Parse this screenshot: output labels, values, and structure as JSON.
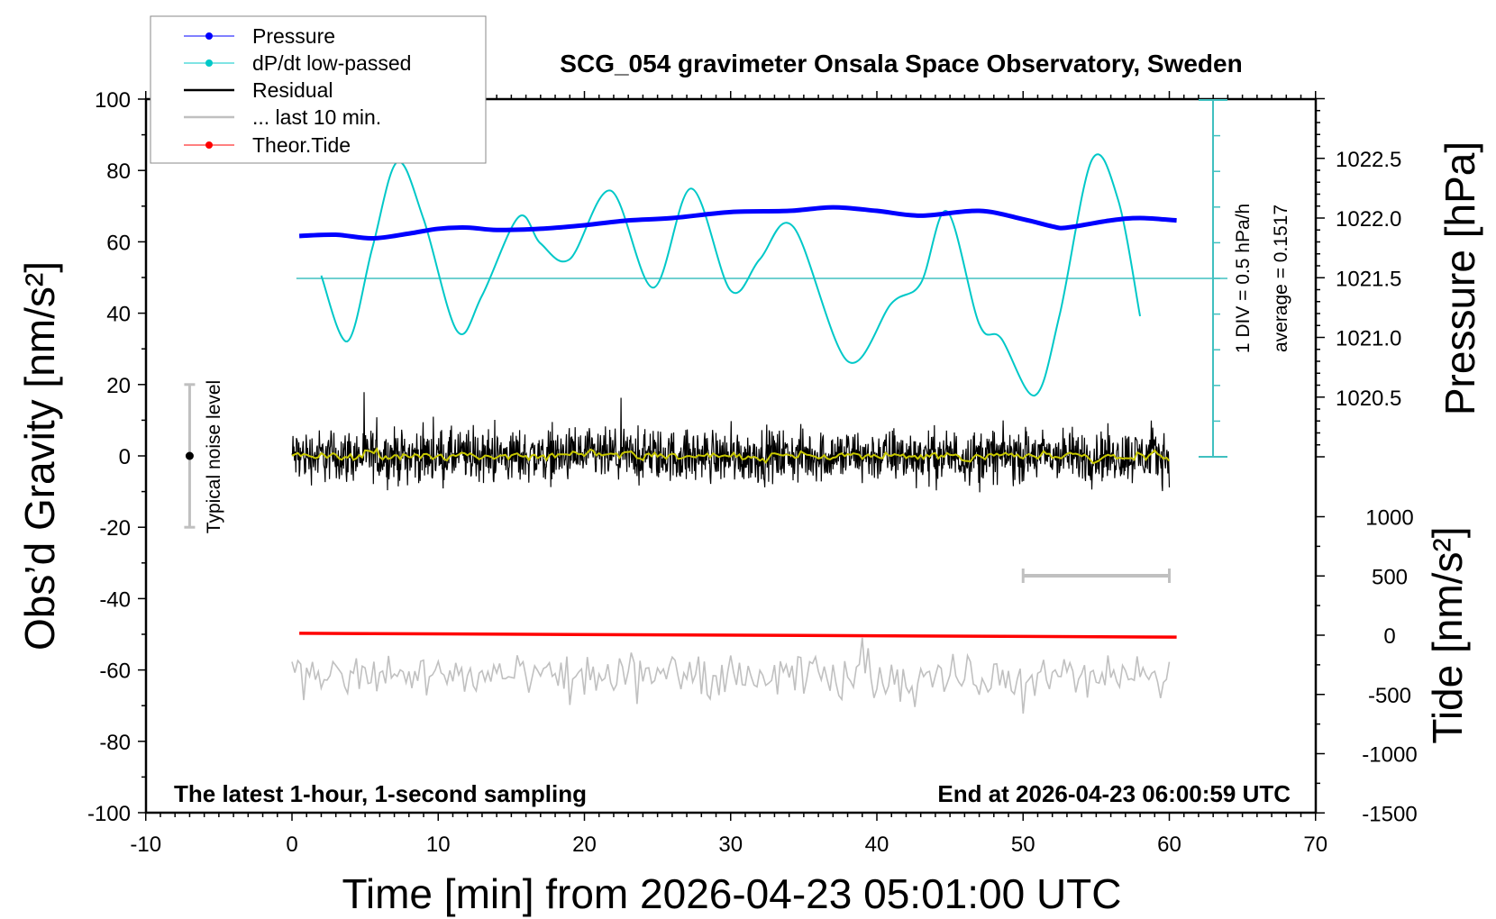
{
  "chart_data": {
    "type": "line",
    "title": "SCG_054 gravimeter Onsala Space Observatory, Sweden",
    "xlabel": "Time [min] from 2026-04-23 05:01:00 UTC",
    "ylabel_left": "Obs’d Gravity [nm/s²]",
    "ylabel_right_top": "Pressure [hPa]",
    "ylabel_right_bottom": "Tide [nm/s²]",
    "xlim": [
      -10,
      70
    ],
    "ylim_left": [
      -100,
      100
    ],
    "ylim_pressure": [
      1020.0,
      1023.0
    ],
    "ylim_tide": [
      -1500,
      1000
    ],
    "x_ticks": [
      "-10",
      "0",
      "10",
      "20",
      "30",
      "40",
      "50",
      "60",
      "70"
    ],
    "y_left_ticks": [
      "100",
      "80",
      "60",
      "40",
      "20",
      "0",
      "-20",
      "-40",
      "-60",
      "-80",
      "-100"
    ],
    "pressure_ticks": [
      "1022.5",
      "1022.0",
      "1021.5",
      "1021.0",
      "1020.5"
    ],
    "tide_ticks": [
      "1000",
      "500",
      "0",
      "-500",
      "-1000",
      "-1500"
    ],
    "legend": {
      "placement": "top-left",
      "items": [
        {
          "label": "Pressure",
          "color": "#0000ff"
        },
        {
          "label": "dP/dt low-passed",
          "color": "#00c8c8"
        },
        {
          "label": "Residual",
          "color": "#000000"
        },
        {
          "label": "... last 10 min.",
          "color": "#c0c0c0"
        },
        {
          "label": "Theor.Tide",
          "color": "#ff0000"
        }
      ]
    },
    "series": [
      {
        "name": "Pressure",
        "unit": "hPa",
        "color": "#0000ff",
        "x": [
          0.5,
          3,
          5.5,
          8,
          10,
          12,
          14,
          17,
          20,
          23,
          26,
          30,
          34,
          37,
          40,
          43,
          47,
          50,
          52,
          53,
          56,
          58,
          60.5
        ],
        "y": [
          1021.85,
          1021.86,
          1021.83,
          1021.87,
          1021.91,
          1021.92,
          1021.9,
          1021.91,
          1021.94,
          1021.98,
          1022.0,
          1022.05,
          1022.06,
          1022.09,
          1022.06,
          1022.02,
          1022.06,
          1021.99,
          1021.93,
          1021.92,
          1021.98,
          1022.0,
          1021.98
        ]
      },
      {
        "name": "dP/dt low-passed",
        "unit": "hPa/h",
        "color": "#00c8c8",
        "x": [
          2,
          3.8,
          5.5,
          7.2,
          9,
          11.3,
          13,
          15.5,
          17,
          19,
          21.8,
          24.7,
          27.3,
          30,
          32,
          34.3,
          38,
          41,
          43,
          44.8,
          47,
          48.5,
          50.8,
          52.5,
          54.7,
          56.5,
          58
        ],
        "y": [
          0.04,
          -0.88,
          0.43,
          1.63,
          0.83,
          -0.74,
          -0.24,
          0.86,
          0.49,
          0.27,
          1.23,
          -0.13,
          1.26,
          -0.17,
          0.27,
          0.72,
          -1.16,
          -0.35,
          -0.07,
          0.94,
          -0.64,
          -0.84,
          -1.64,
          -0.51,
          1.66,
          1.1,
          -0.53
        ]
      },
      {
        "name": "Residual",
        "unit": "nm/s²",
        "color": "#000000",
        "x_range": [
          0,
          60
        ],
        "mean": 0,
        "amplitude": 8,
        "smoothed_color": "#c8c800"
      },
      {
        "name": "... last 10 min.",
        "unit": "nm/s²",
        "color": "#c0c0c0",
        "x_range": [
          0,
          60
        ],
        "offset": -62,
        "amplitude": 6
      },
      {
        "name": "Theor.Tide",
        "unit": "nm/s²",
        "color": "#ff0000",
        "x": [
          0.5,
          60.5
        ],
        "y": [
          16,
          -16
        ]
      }
    ],
    "dpdt_scale": {
      "div_label": "1 DIV = 0.5 hPa/h",
      "average_label": "average = 0.1517",
      "zero_at_pressure": 1021.5,
      "div_value": 0.5
    },
    "noise_level": {
      "label": "Typical noise level",
      "x": -7,
      "center": 0,
      "half_range": 20
    },
    "time_scale_bar": {
      "x": [
        50,
        60
      ],
      "value_min": 10
    },
    "annotations": {
      "left": "The latest 1-hour, 1-second sampling",
      "right": "End at 2026-04-23 06:00:59 UTC"
    }
  }
}
